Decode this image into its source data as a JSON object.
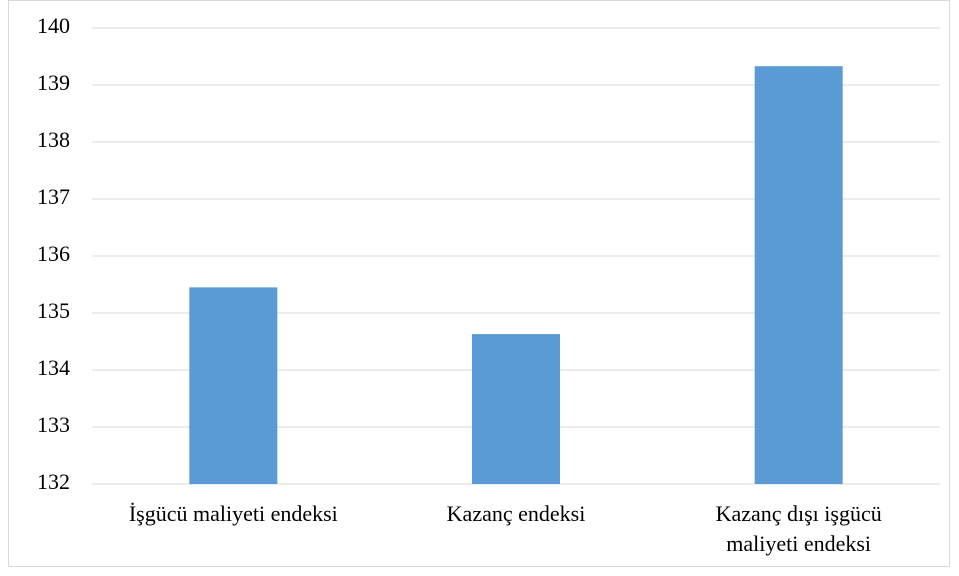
{
  "chart_data": {
    "type": "bar",
    "categories": [
      "İşgücü maliyeti endeksi",
      "Kazanç endeksi",
      "Kazanç dışı işgücü maliyeti endeksi"
    ],
    "values": [
      135.45,
      134.63,
      139.33
    ],
    "color": "#5b9bd5",
    "ylim": [
      132,
      140
    ],
    "yticks": [
      132,
      133,
      134,
      135,
      136,
      137,
      138,
      139,
      140
    ],
    "grid": true
  }
}
